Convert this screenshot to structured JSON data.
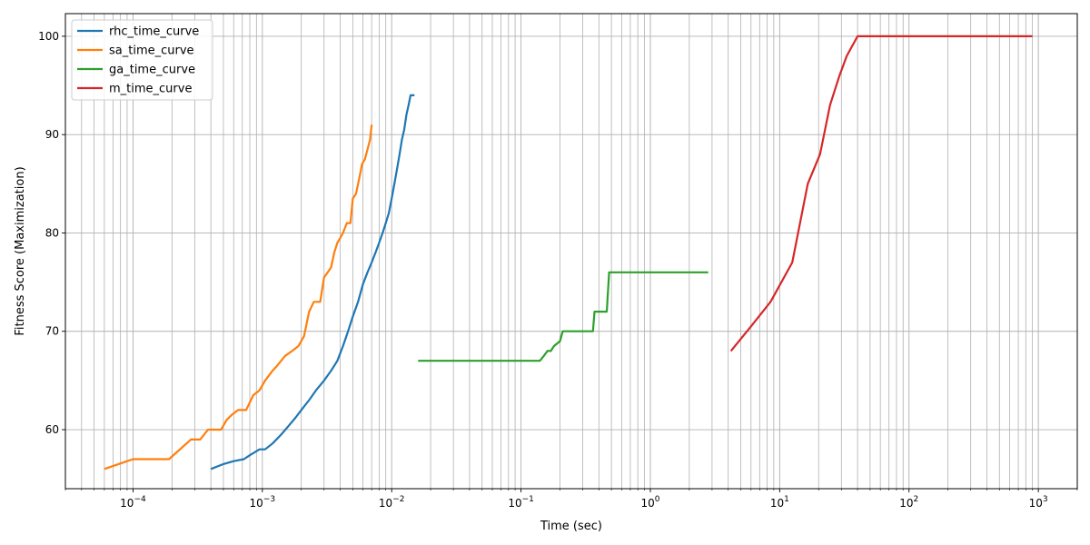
{
  "chart_data": {
    "type": "line",
    "xlabel": "Time (sec)",
    "ylabel": "Fitness Score (Maximization)",
    "xscale": "log",
    "xlim": [
      3e-05,
      2000
    ],
    "ylim": [
      54,
      102.3
    ],
    "grid": true,
    "legend": "top-left",
    "x_ticks": [
      {
        "value": 0.0001,
        "mantissa": "10",
        "exp": "−4"
      },
      {
        "value": 0.001,
        "mantissa": "10",
        "exp": "−3"
      },
      {
        "value": 0.01,
        "mantissa": "10",
        "exp": "−2"
      },
      {
        "value": 0.1,
        "mantissa": "10",
        "exp": "−1"
      },
      {
        "value": 1,
        "mantissa": "10",
        "exp": "0"
      },
      {
        "value": 10,
        "mantissa": "10",
        "exp": "1"
      },
      {
        "value": 100,
        "mantissa": "10",
        "exp": "2"
      },
      {
        "value": 1000,
        "mantissa": "10",
        "exp": "3"
      }
    ],
    "y_ticks": [
      60,
      70,
      80,
      90,
      100
    ],
    "series": [
      {
        "name": "rhc_time_curve",
        "color": "#1f77b4",
        "x": [
          0.0004,
          0.0005,
          0.0006,
          0.00072,
          0.0008,
          0.00095,
          0.00105,
          0.0012,
          0.0014,
          0.0016,
          0.0018,
          0.002,
          0.0023,
          0.0026,
          0.003,
          0.0034,
          0.0038,
          0.0042,
          0.0046,
          0.005,
          0.0055,
          0.006,
          0.0065,
          0.007,
          0.0075,
          0.008,
          0.0085,
          0.009,
          0.0095,
          0.01,
          0.0105,
          0.011,
          0.0115,
          0.012,
          0.0125,
          0.013,
          0.0135,
          0.014,
          0.015
        ],
        "y": [
          56,
          56.5,
          56.8,
          57,
          57.4,
          58,
          58,
          58.6,
          59.5,
          60.4,
          61.2,
          62,
          63,
          64,
          65,
          66,
          67,
          68.5,
          70,
          71.5,
          73,
          74.8,
          76,
          77,
          78,
          79,
          80,
          81,
          82,
          83.5,
          85,
          86.5,
          88,
          89.5,
          90.5,
          92,
          93,
          94,
          94
        ]
      },
      {
        "name": "sa_time_curve",
        "color": "#ff7f0e",
        "x": [
          6e-05,
          0.0001,
          0.00019,
          0.00028,
          0.00033,
          0.00038,
          0.00048,
          0.00053,
          0.00058,
          0.00065,
          0.00075,
          0.00085,
          0.00095,
          0.00105,
          0.0012,
          0.0013,
          0.0015,
          0.0017,
          0.0019,
          0.0021,
          0.0023,
          0.0025,
          0.0028,
          0.003,
          0.0032,
          0.0034,
          0.0036,
          0.0038,
          0.004,
          0.0042,
          0.0045,
          0.0048,
          0.005,
          0.0053,
          0.0056,
          0.0059,
          0.0062,
          0.0065,
          0.0068,
          0.007
        ],
        "y": [
          56,
          57,
          57,
          59,
          59,
          60,
          60,
          61,
          61.5,
          62,
          62,
          63.5,
          64,
          65,
          66,
          66.5,
          67.5,
          68,
          68.5,
          69.5,
          72,
          73,
          73,
          75.5,
          76,
          76.5,
          78,
          79,
          79.5,
          80,
          81,
          81,
          83.5,
          84,
          85.5,
          87,
          87.5,
          88.5,
          89.5,
          91
        ]
      },
      {
        "name": "ga_time_curve",
        "color": "#2ca02c",
        "x": [
          0.016,
          0.05,
          0.1,
          0.14,
          0.15,
          0.16,
          0.17,
          0.18,
          0.2,
          0.21,
          0.25,
          0.3,
          0.36,
          0.37,
          0.4,
          0.44,
          0.46,
          0.48,
          0.6,
          1,
          1.5,
          2.8
        ],
        "y": [
          67,
          67,
          67,
          67,
          67.5,
          68,
          68,
          68.5,
          69,
          70,
          70,
          70,
          70,
          72,
          72,
          72,
          72,
          76,
          76,
          76,
          76,
          76
        ]
      },
      {
        "name": "m_time_curve",
        "color": "#d62728",
        "x": [
          4.2,
          6,
          8.5,
          12.5,
          16.5,
          20.5,
          24.5,
          29,
          33,
          40,
          100,
          500,
          900
        ],
        "y": [
          68,
          70.5,
          73,
          77,
          85,
          88,
          93,
          96,
          98,
          100,
          100,
          100,
          100
        ]
      }
    ]
  }
}
